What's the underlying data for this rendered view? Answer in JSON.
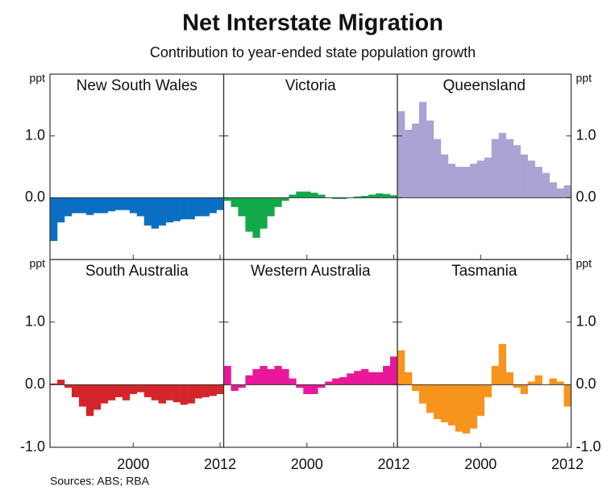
{
  "title": "Net Interstate Migration",
  "subtitle": "Contribution to year-ended state population growth",
  "source": "Sources: ABS; RBA",
  "chart_data": [
    {
      "type": "bar",
      "title": "New South Wales",
      "color": "#0a6fc2",
      "ylabel": "ppt",
      "x": [
        1989,
        1990,
        1991,
        1992,
        1993,
        1994,
        1995,
        1996,
        1997,
        1998,
        1999,
        2000,
        2001,
        2002,
        2003,
        2004,
        2005,
        2006,
        2007,
        2008,
        2009,
        2010,
        2011,
        2012
      ],
      "values": [
        -0.7,
        -0.4,
        -0.3,
        -0.25,
        -0.25,
        -0.28,
        -0.25,
        -0.25,
        -0.22,
        -0.2,
        -0.2,
        -0.25,
        -0.3,
        -0.45,
        -0.5,
        -0.45,
        -0.4,
        -0.38,
        -0.35,
        -0.35,
        -0.3,
        -0.3,
        -0.25,
        -0.2
      ],
      "xlim": [
        1988.5,
        2012.5
      ],
      "xticks": [
        2000,
        2012
      ],
      "ylim": [
        -1,
        2
      ],
      "yticks": [
        {
          "value": 0,
          "label": "0.0"
        },
        {
          "value": 1,
          "label": "1.0"
        }
      ]
    },
    {
      "type": "bar",
      "title": "Victoria",
      "color": "#13a84a",
      "x": [
        1989,
        1990,
        1991,
        1992,
        1993,
        1994,
        1995,
        1996,
        1997,
        1998,
        1999,
        2000,
        2001,
        2002,
        2003,
        2004,
        2005,
        2006,
        2007,
        2008,
        2009,
        2010,
        2011,
        2012
      ],
      "values": [
        -0.05,
        -0.15,
        -0.3,
        -0.55,
        -0.65,
        -0.5,
        -0.3,
        -0.15,
        -0.05,
        0.05,
        0.1,
        0.1,
        0.08,
        0.05,
        0.0,
        -0.02,
        -0.02,
        0.0,
        0.02,
        0.03,
        0.05,
        0.07,
        0.06,
        0.04
      ],
      "xlim": [
        1988.5,
        2012.5
      ],
      "xticks": [
        2000,
        2012
      ],
      "ylim": [
        -1,
        2
      ],
      "yticks": [
        {
          "value": 0,
          "label": "0.0"
        },
        {
          "value": 1,
          "label": "1.0"
        }
      ]
    },
    {
      "type": "bar",
      "title": "Queensland",
      "color": "#a9a4d4",
      "ylabel": "ppt",
      "x": [
        1989,
        1990,
        1991,
        1992,
        1993,
        1994,
        1995,
        1996,
        1997,
        1998,
        1999,
        2000,
        2001,
        2002,
        2003,
        2004,
        2005,
        2006,
        2007,
        2008,
        2009,
        2010,
        2011,
        2012
      ],
      "values": [
        1.4,
        1.1,
        1.2,
        1.55,
        1.25,
        0.95,
        0.7,
        0.55,
        0.5,
        0.5,
        0.55,
        0.6,
        0.65,
        0.95,
        1.05,
        0.95,
        0.85,
        0.7,
        0.6,
        0.5,
        0.4,
        0.25,
        0.15,
        0.2
      ],
      "xlim": [
        1988.5,
        2012.5
      ],
      "xticks": [
        2000,
        2012
      ],
      "ylim": [
        -1,
        2
      ],
      "yticks": [
        {
          "value": 0,
          "label": "0.0"
        },
        {
          "value": 1,
          "label": "1.0"
        }
      ]
    },
    {
      "type": "bar",
      "title": "South Australia",
      "color": "#d4262a",
      "ylabel": "ppt",
      "x": [
        1989,
        1990,
        1991,
        1992,
        1993,
        1994,
        1995,
        1996,
        1997,
        1998,
        1999,
        2000,
        2001,
        2002,
        2003,
        2004,
        2005,
        2006,
        2007,
        2008,
        2009,
        2010,
        2011,
        2012
      ],
      "values": [
        0.02,
        0.08,
        -0.05,
        -0.2,
        -0.35,
        -0.5,
        -0.4,
        -0.3,
        -0.25,
        -0.2,
        -0.25,
        -0.15,
        -0.12,
        -0.2,
        -0.25,
        -0.3,
        -0.25,
        -0.28,
        -0.32,
        -0.3,
        -0.22,
        -0.2,
        -0.18,
        -0.15
      ],
      "xlim": [
        1988.5,
        2012.5
      ],
      "xticks": [
        2000,
        2012
      ],
      "ylim": [
        -1,
        2
      ],
      "yticks": [
        {
          "value": -1,
          "label": "-1.0"
        },
        {
          "value": 0,
          "label": "0.0"
        },
        {
          "value": 1,
          "label": "1.0"
        }
      ]
    },
    {
      "type": "bar",
      "title": "Western Australia",
      "color": "#e9179a",
      "x": [
        1989,
        1990,
        1991,
        1992,
        1993,
        1994,
        1995,
        1996,
        1997,
        1998,
        1999,
        2000,
        2001,
        2002,
        2003,
        2004,
        2005,
        2006,
        2007,
        2008,
        2009,
        2010,
        2011,
        2012
      ],
      "values": [
        0.3,
        -0.1,
        -0.05,
        0.15,
        0.25,
        0.3,
        0.25,
        0.3,
        0.25,
        0.1,
        -0.05,
        -0.15,
        -0.15,
        -0.05,
        0.05,
        0.1,
        0.12,
        0.18,
        0.22,
        0.25,
        0.2,
        0.2,
        0.3,
        0.45
      ],
      "xlim": [
        1988.5,
        2012.5
      ],
      "xticks": [
        2000,
        2012
      ],
      "ylim": [
        -1,
        2
      ],
      "yticks": [
        {
          "value": -1,
          "label": "-1.0"
        },
        {
          "value": 0,
          "label": "0.0"
        },
        {
          "value": 1,
          "label": "1.0"
        }
      ]
    },
    {
      "type": "bar",
      "title": "Tasmania",
      "color": "#f7941d",
      "ylabel": "ppt",
      "x": [
        1989,
        1990,
        1991,
        1992,
        1993,
        1994,
        1995,
        1996,
        1997,
        1998,
        1999,
        2000,
        2001,
        2002,
        2003,
        2004,
        2005,
        2006,
        2007,
        2008,
        2009,
        2010,
        2011,
        2012
      ],
      "values": [
        0.55,
        0.2,
        -0.1,
        -0.3,
        -0.45,
        -0.55,
        -0.6,
        -0.65,
        -0.75,
        -0.78,
        -0.7,
        -0.5,
        -0.2,
        0.3,
        0.65,
        0.2,
        -0.05,
        -0.15,
        0.05,
        0.15,
        0.0,
        0.1,
        0.05,
        -0.35
      ],
      "xlim": [
        1988.5,
        2012.5
      ],
      "xticks": [
        2000,
        2012
      ],
      "ylim": [
        -1,
        2
      ],
      "yticks": [
        {
          "value": -1,
          "label": "-1.0"
        },
        {
          "value": 0,
          "label": "0.0"
        },
        {
          "value": 1,
          "label": "1.0"
        }
      ]
    }
  ]
}
